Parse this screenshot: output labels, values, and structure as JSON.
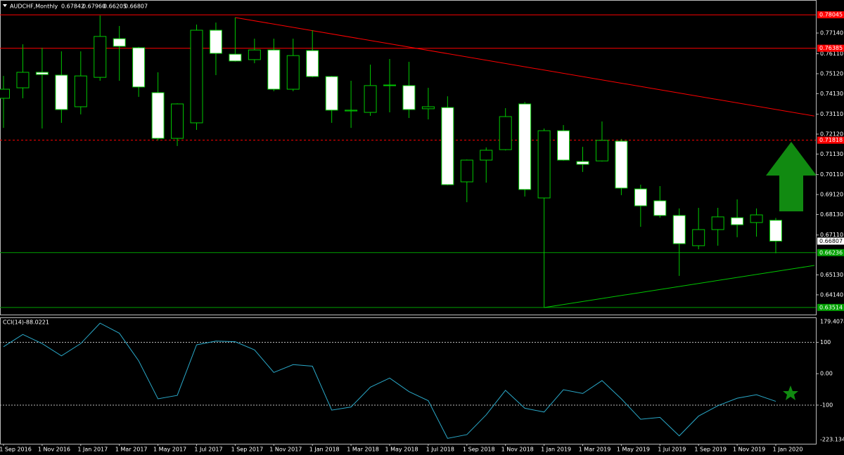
{
  "chart_data": [
    {
      "type": "candlestick",
      "title": "AUDCHF,Monthly",
      "last_quote_labels": [
        "0.67842",
        "0.67960",
        "0.66205",
        "0.66807"
      ],
      "categories": [
        "1 Sep 2016",
        null,
        "1 Nov 2016",
        null,
        "1 Jan 2017",
        null,
        "1 Mar 2017",
        null,
        "1 May 2017",
        null,
        "1 Jul 2017",
        null,
        "1 Sep 2017",
        null,
        "1 Nov 2017",
        null,
        "1 Jan 2018",
        null,
        "1 Mar 2018",
        null,
        "1 May 2018",
        null,
        "1 Jul 2018",
        null,
        "1 Sep 2018",
        null,
        "1 Nov 2018",
        null,
        "1 Jan 2019",
        null,
        "1 Mar 2019",
        null,
        "1 May 2019",
        null,
        "1 Jul 2019",
        null,
        "1 Sep 2019",
        null,
        "1 Nov 2019",
        null,
        "1 Jan 2020"
      ],
      "open": [
        0.739,
        0.7442,
        0.7519,
        0.7505,
        0.7348,
        0.7494,
        0.7686,
        0.7641,
        0.7418,
        0.7191,
        0.7268,
        0.7728,
        0.7609,
        0.7582,
        0.763,
        0.7435,
        0.7627,
        0.7498,
        0.7327,
        0.732,
        0.7453,
        0.7453,
        0.7338,
        0.7344,
        0.6975,
        0.7083,
        0.7135,
        0.7362,
        0.6895,
        0.7229,
        0.7076,
        0.7079,
        0.7177,
        0.694,
        0.6881,
        0.6808,
        0.6658,
        0.6738,
        0.6797,
        0.6773,
        0.67842
      ],
      "high": [
        0.7501,
        0.7658,
        0.7641,
        0.7623,
        0.7623,
        0.7801,
        0.7749,
        0.7645,
        0.7519,
        0.7365,
        0.7756,
        0.7766,
        0.7791,
        0.7686,
        0.7686,
        0.7686,
        0.7728,
        0.7501,
        0.7477,
        0.7557,
        0.7585,
        0.7571,
        0.7442,
        0.74,
        0.7086,
        0.7146,
        0.7341,
        0.7372,
        0.724,
        0.7257,
        0.7149,
        0.7275,
        0.7188,
        0.6961,
        0.6954,
        0.6843,
        0.6846,
        0.6846,
        0.6888,
        0.6843,
        0.6796
      ],
      "low": [
        0.7243,
        0.739,
        0.724,
        0.7268,
        0.731,
        0.7477,
        0.7477,
        0.7397,
        0.7181,
        0.7153,
        0.7233,
        0.7505,
        0.7572,
        0.7564,
        0.7425,
        0.7425,
        0.7494,
        0.7268,
        0.7243,
        0.7303,
        0.732,
        0.7292,
        0.7285,
        0.6958,
        0.6874,
        0.6971,
        0.7131,
        0.6902,
        0.6351,
        0.708,
        0.7024,
        0.7076,
        0.6909,
        0.6752,
        0.6797,
        0.6508,
        0.664,
        0.6658,
        0.67,
        0.6703,
        0.66205
      ],
      "close": [
        0.7435,
        0.7519,
        0.7508,
        0.7334,
        0.7501,
        0.7697,
        0.7648,
        0.7446,
        0.7191,
        0.7362,
        0.7728,
        0.7613,
        0.7575,
        0.763,
        0.7435,
        0.7602,
        0.7498,
        0.7331,
        0.7331,
        0.7453,
        0.7456,
        0.7334,
        0.7348,
        0.6961,
        0.7083,
        0.7132,
        0.7299,
        0.6937,
        0.7229,
        0.7083,
        0.7062,
        0.7181,
        0.6944,
        0.6856,
        0.6808,
        0.6668,
        0.6738,
        0.6801,
        0.6762,
        0.6811,
        0.66807
      ],
      "up_color": "#000000",
      "down_color": "#ffffff",
      "line_color": "#00c800",
      "ylim": [
        0.6316,
        0.7878
      ],
      "yticks": [
        {
          "value": 0.7714,
          "label": "0.77140"
        },
        {
          "value": 0.7611,
          "label": "0.76110"
        },
        {
          "value": 0.7512,
          "label": "0.75120"
        },
        {
          "value": 0.7413,
          "label": "0.74130"
        },
        {
          "value": 0.7311,
          "label": "0.73110"
        },
        {
          "value": 0.7212,
          "label": "0.72120"
        },
        {
          "value": 0.7113,
          "label": "0.71130"
        },
        {
          "value": 0.7011,
          "label": "0.70110"
        },
        {
          "value": 0.6912,
          "label": "0.69120"
        },
        {
          "value": 0.6813,
          "label": "0.68130"
        },
        {
          "value": 0.6711,
          "label": "0.67110"
        },
        {
          "value": 0.6513,
          "label": "0.65130"
        },
        {
          "value": 0.6414,
          "label": "0.64140"
        }
      ],
      "hlines": [
        {
          "value": 0.78045,
          "color": "#ff0000",
          "dashed": false
        },
        {
          "value": 0.76385,
          "color": "#ff0000",
          "dashed": false
        },
        {
          "value": 0.71818,
          "color": "#ff0000",
          "dashed": true
        },
        {
          "value": 0.66236,
          "color": "#00a000",
          "dashed": false
        },
        {
          "value": 0.63514,
          "color": "#00a000",
          "dashed": false
        }
      ],
      "trendlines": [
        {
          "x": [
            12,
            42
          ],
          "y": [
            0.7791,
            0.7302
          ],
          "color": "#ff0000"
        },
        {
          "x": [
            28,
            42
          ],
          "y": [
            0.6351,
            0.656
          ],
          "color": "#00c800"
        }
      ]
    },
    {
      "type": "line",
      "title": "CCI(14)",
      "color": "#2aa8c8",
      "values": [
        86,
        125,
        96,
        57,
        96,
        161,
        129,
        41,
        -80,
        -69,
        92,
        104,
        102,
        76,
        4,
        29,
        24,
        -116,
        -106,
        -43,
        -14,
        -57,
        -86,
        -206,
        -194,
        -131,
        -53,
        -110,
        -122,
        -51,
        -63,
        -22,
        -80,
        -145,
        -139,
        -198,
        -135,
        -102,
        -78,
        -67,
        -88.0221
      ],
      "ylim": [
        -223.1347,
        179.4078
      ],
      "yticks": [
        100,
        {
          "value": 0,
          "label": "0.00"
        },
        -100
      ],
      "levels": [
        100,
        -100
      ]
    }
  ]
}
